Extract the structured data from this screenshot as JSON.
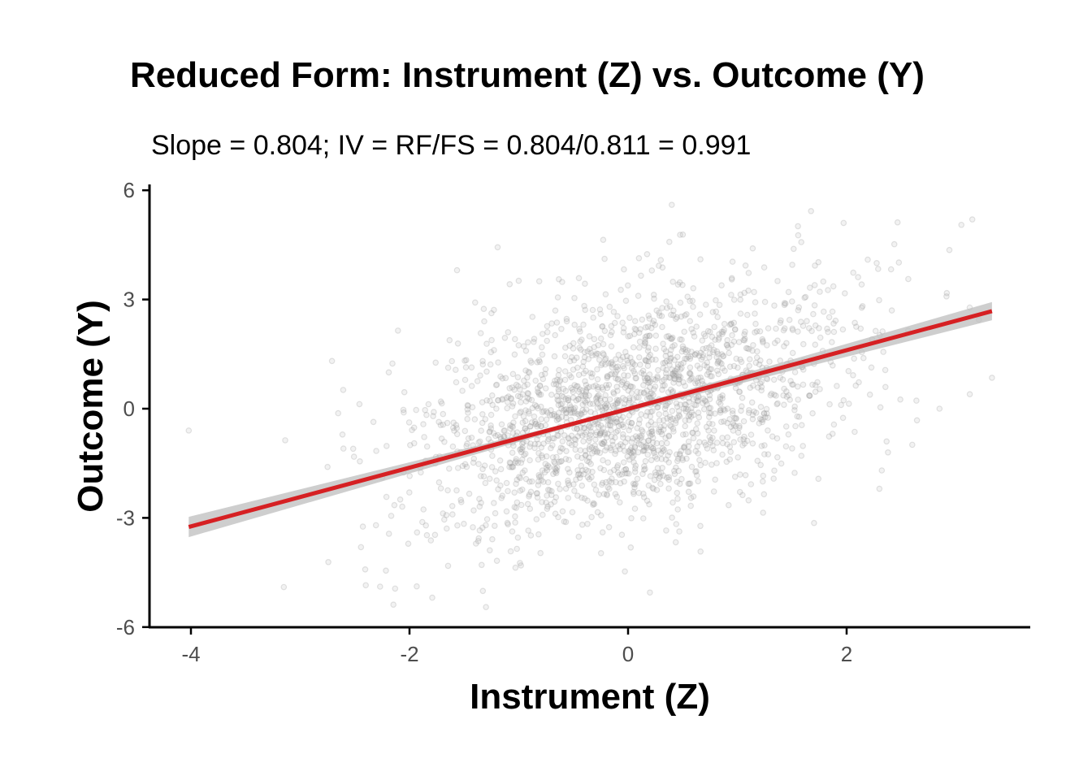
{
  "chart_data": {
    "type": "scatter",
    "title": "Reduced Form: Instrument (Z) vs. Outcome (Y)",
    "subtitle": "Slope = 0.804; IV = RF/FS = 0.804/0.811 = 0.991",
    "xlabel": "Instrument (Z)",
    "ylabel": "Outcome (Y)",
    "xlim": [
      -4.2,
      3.7
    ],
    "ylim": [
      -6.05,
      6.1
    ],
    "x_ticks": [
      -4,
      -2,
      0,
      2
    ],
    "x_tick_labels": [
      "-4",
      "-2",
      "0",
      "2"
    ],
    "y_ticks": [
      -6,
      -3,
      0,
      3,
      6
    ],
    "y_tick_labels": [
      "-6",
      "-3",
      "0",
      "3",
      "6"
    ],
    "grid": false,
    "legend": "none",
    "points": {
      "count": 2000,
      "x_mean": 0.0,
      "x_sd": 1.0,
      "y_intercept": 0.0,
      "y_slope": 0.804,
      "residual_sd": 1.55,
      "color": "#9a9a9a",
      "opacity": 0.28
    },
    "fit_line": {
      "method": "linear",
      "x_start": -4.02,
      "x_end": 3.33,
      "y_start": -3.25,
      "y_end": 2.68,
      "slope": 0.804,
      "color": "#d62023",
      "ci_color": "#bdbdbd",
      "ci_halfwidth_start": 0.28,
      "ci_halfwidth_mid": 0.05,
      "ci_halfwidth_end": 0.25
    },
    "outlier_points": [
      {
        "x": -4.02,
        "y": -0.6
      },
      {
        "x": -3.15,
        "y": -4.9
      },
      {
        "x": 0.4,
        "y": 5.6
      },
      {
        "x": 3.05,
        "y": 5.05
      },
      {
        "x": 3.15,
        "y": 5.2
      },
      {
        "x": 3.33,
        "y": 0.85
      },
      {
        "x": 2.85,
        "y": 0.0
      },
      {
        "x": -1.3,
        "y": -5.45
      },
      {
        "x": 0.2,
        "y": -5.05
      },
      {
        "x": -2.4,
        "y": -4.85
      },
      {
        "x": 2.3,
        "y": -2.2
      },
      {
        "x": -2.75,
        "y": -1.6
      }
    ]
  }
}
